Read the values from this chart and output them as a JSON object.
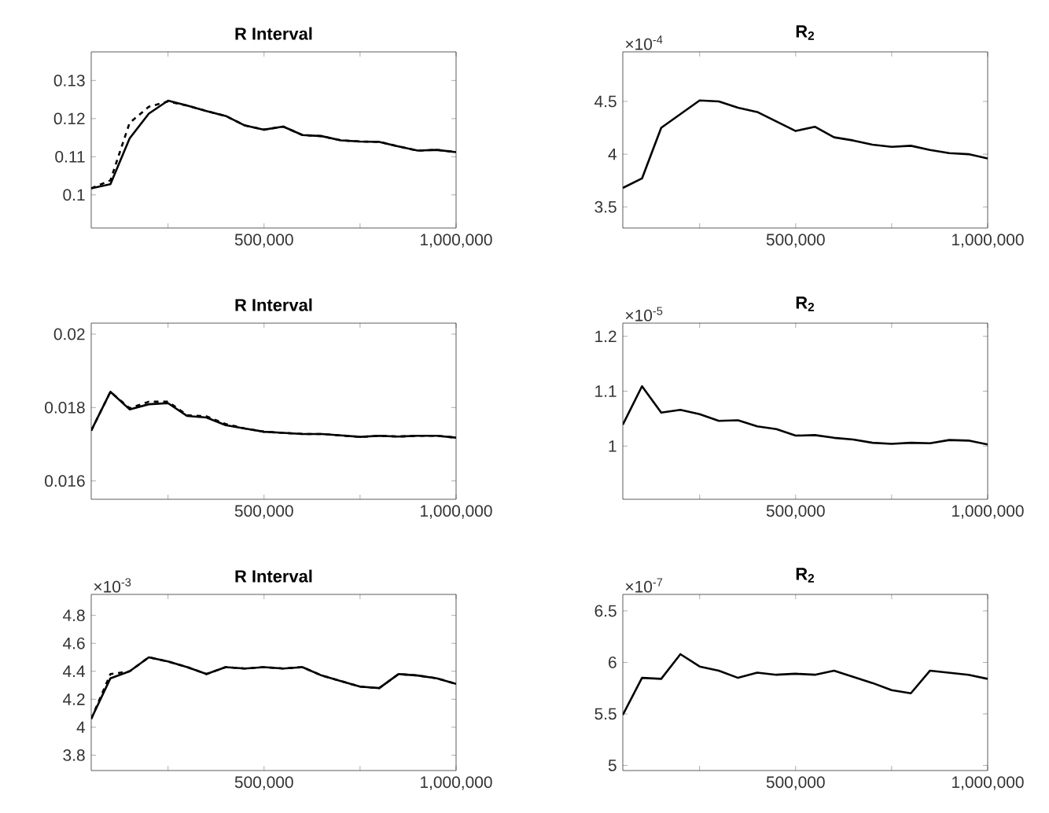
{
  "chart_data": [
    {
      "type": "line",
      "title": "R Interval",
      "x": [
        50000,
        100000,
        150000,
        200000,
        250000,
        300000,
        350000,
        400000,
        450000,
        500000,
        550000,
        600000,
        650000,
        700000,
        750000,
        800000,
        850000,
        900000,
        950000,
        1000000
      ],
      "series": [
        {
          "color": "#000000",
          "line_style": "dashed",
          "values": [
            0.1017,
            0.1038,
            0.1189,
            0.1231,
            0.1245,
            0.1234,
            0.122,
            0.1207,
            0.1182,
            0.1171,
            0.1179,
            0.1157,
            0.1154,
            0.1143,
            0.114,
            0.1139,
            0.1127,
            0.1116,
            0.1118,
            0.1112
          ]
        },
        {
          "color": "#000000",
          "line_style": "solid",
          "values": [
            0.1017,
            0.1028,
            0.1148,
            0.1213,
            0.1247,
            0.1234,
            0.122,
            0.1207,
            0.1182,
            0.1171,
            0.1179,
            0.1157,
            0.1154,
            0.1143,
            0.114,
            0.1139,
            0.1127,
            0.1116,
            0.1118,
            0.1112
          ]
        }
      ],
      "xlim": [
        50000,
        1000000
      ],
      "ylim": [
        0.0913,
        0.1375
      ],
      "xticks": [
        {
          "value": 250000,
          "label": null
        },
        {
          "value": 500000,
          "label": "500,000"
        },
        {
          "value": 750000,
          "label": null
        },
        {
          "value": 1000000,
          "label": "1,000,000"
        }
      ],
      "yticks": [
        0.1,
        0.11,
        0.12,
        0.13
      ]
    },
    {
      "type": "line",
      "title": "R$_{2}$",
      "x": [
        50000,
        100000,
        150000,
        200000,
        250000,
        300000,
        350000,
        400000,
        450000,
        500000,
        550000,
        600000,
        650000,
        700000,
        750000,
        800000,
        850000,
        900000,
        950000,
        1000000
      ],
      "series": [
        {
          "color": "#000000",
          "line_style": "solid",
          "values": [
            3.68,
            3.77,
            4.25,
            4.38,
            4.51,
            4.5,
            4.44,
            4.4,
            4.31,
            4.22,
            4.26,
            4.16,
            4.13,
            4.09,
            4.07,
            4.08,
            4.04,
            4.01,
            4.0,
            3.96
          ]
        }
      ],
      "xlim": [
        50000,
        1000000
      ],
      "ylim": [
        3.3,
        4.97
      ],
      "xticks": [
        {
          "value": 250000,
          "label": null
        },
        {
          "value": 500000,
          "label": "500,000"
        },
        {
          "value": 750000,
          "label": null
        },
        {
          "value": 1000000,
          "label": "1,000,000"
        }
      ],
      "yticks": [
        3.5,
        4,
        4.5
      ],
      "annotations": [
        "×10$^{-4}$"
      ]
    },
    {
      "type": "line",
      "title": "R Interval",
      "x": [
        50000,
        100000,
        150000,
        200000,
        250000,
        300000,
        350000,
        400000,
        450000,
        500000,
        550000,
        600000,
        650000,
        700000,
        750000,
        800000,
        850000,
        900000,
        950000,
        1000000
      ],
      "series": [
        {
          "color": "#000000",
          "line_style": "dashed",
          "values": [
            0.01737,
            0.01843,
            0.01798,
            0.01816,
            0.01816,
            0.01779,
            0.01776,
            0.01755,
            0.01743,
            0.01734,
            0.01731,
            0.01728,
            0.01728,
            0.01724,
            0.0172,
            0.01723,
            0.01721,
            0.01723,
            0.01723,
            0.01718
          ]
        },
        {
          "color": "#000000",
          "line_style": "solid",
          "values": [
            0.01737,
            0.01843,
            0.01795,
            0.01809,
            0.01812,
            0.01777,
            0.01773,
            0.01752,
            0.01743,
            0.01734,
            0.01731,
            0.01728,
            0.01728,
            0.01724,
            0.0172,
            0.01723,
            0.01721,
            0.01723,
            0.01723,
            0.01718
          ]
        }
      ],
      "xlim": [
        50000,
        1000000
      ],
      "ylim": [
        0.0155,
        0.0203
      ],
      "xticks": [
        {
          "value": 250000,
          "label": null
        },
        {
          "value": 500000,
          "label": "500,000"
        },
        {
          "value": 750000,
          "label": null
        },
        {
          "value": 1000000,
          "label": "1,000,000"
        }
      ],
      "yticks": [
        0.016,
        0.018,
        0.02
      ]
    },
    {
      "type": "line",
      "title": "R$_{2}$",
      "x": [
        50000,
        100000,
        150000,
        200000,
        250000,
        300000,
        350000,
        400000,
        450000,
        500000,
        550000,
        600000,
        650000,
        700000,
        750000,
        800000,
        850000,
        900000,
        950000,
        1000000
      ],
      "series": [
        {
          "color": "#000000",
          "line_style": "solid",
          "values": [
            1.039,
            1.109,
            1.061,
            1.066,
            1.058,
            1.046,
            1.047,
            1.036,
            1.031,
            1.019,
            1.02,
            1.015,
            1.012,
            1.006,
            1.004,
            1.006,
            1.005,
            1.011,
            1.01,
            1.003
          ]
        }
      ],
      "xlim": [
        50000,
        1000000
      ],
      "ylim": [
        0.903,
        1.224
      ],
      "xticks": [
        {
          "value": 250000,
          "label": null
        },
        {
          "value": 500000,
          "label": "500,000"
        },
        {
          "value": 750000,
          "label": null
        },
        {
          "value": 1000000,
          "label": "1,000,000"
        }
      ],
      "yticks": [
        1,
        1.1,
        1.2
      ],
      "annotations": [
        "×10$^{-5}$"
      ]
    },
    {
      "type": "line",
      "title": "R Interval",
      "x": [
        50000,
        100000,
        150000,
        200000,
        250000,
        300000,
        350000,
        400000,
        450000,
        500000,
        550000,
        600000,
        650000,
        700000,
        750000,
        800000,
        850000,
        900000,
        950000,
        1000000
      ],
      "series": [
        {
          "color": "#000000",
          "line_style": "dashed",
          "values": [
            4.06,
            4.38,
            4.4,
            4.5,
            4.47,
            4.43,
            4.38,
            4.43,
            4.42,
            4.43,
            4.42,
            4.43,
            4.37,
            4.33,
            4.29,
            4.28,
            4.38,
            4.37,
            4.35,
            4.31
          ]
        },
        {
          "color": "#000000",
          "line_style": "solid",
          "values": [
            4.06,
            4.35,
            4.4,
            4.5,
            4.47,
            4.43,
            4.38,
            4.43,
            4.42,
            4.43,
            4.42,
            4.43,
            4.37,
            4.33,
            4.29,
            4.28,
            4.38,
            4.37,
            4.35,
            4.31
          ]
        }
      ],
      "xlim": [
        50000,
        1000000
      ],
      "ylim": [
        3.69,
        4.95
      ],
      "xticks": [
        {
          "value": 250000,
          "label": null
        },
        {
          "value": 500000,
          "label": "500,000"
        },
        {
          "value": 750000,
          "label": null
        },
        {
          "value": 1000000,
          "label": "1,000,000"
        }
      ],
      "yticks": [
        3.8,
        4,
        4.2,
        4.4,
        4.6,
        4.8
      ],
      "annotations": [
        "×10$^{-3}$"
      ]
    },
    {
      "type": "line",
      "title": "R$_{2}$",
      "x": [
        50000,
        100000,
        150000,
        200000,
        250000,
        300000,
        350000,
        400000,
        450000,
        500000,
        550000,
        600000,
        650000,
        700000,
        750000,
        800000,
        850000,
        900000,
        950000,
        1000000
      ],
      "series": [
        {
          "color": "#000000",
          "line_style": "solid",
          "values": [
            5.49,
            5.85,
            5.84,
            6.08,
            5.96,
            5.92,
            5.85,
            5.9,
            5.88,
            5.89,
            5.88,
            5.92,
            5.86,
            5.8,
            5.73,
            5.7,
            5.92,
            5.9,
            5.88,
            5.84
          ]
        }
      ],
      "xlim": [
        50000,
        1000000
      ],
      "ylim": [
        4.95,
        6.66
      ],
      "xticks": [
        {
          "value": 250000,
          "label": null
        },
        {
          "value": 500000,
          "label": "500,000"
        },
        {
          "value": 750000,
          "label": null
        },
        {
          "value": 1000000,
          "label": "1,000,000"
        }
      ],
      "yticks": [
        5,
        5.5,
        6,
        6.5
      ],
      "annotations": [
        "×10$^{-7}$"
      ]
    }
  ]
}
